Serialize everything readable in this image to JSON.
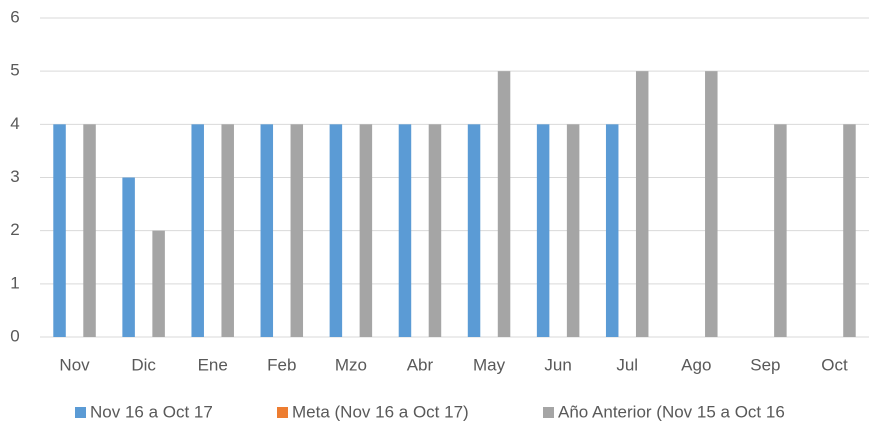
{
  "chart_data": {
    "type": "bar",
    "categories": [
      "Nov",
      "Dic",
      "Ene",
      "Feb",
      "Mzo",
      "Abr",
      "May",
      "Jun",
      "Jul",
      "Ago",
      "Sep",
      "Oct"
    ],
    "series": [
      {
        "name": "Nov 16 a Oct 17",
        "color": "#5b9bd5",
        "values": [
          4,
          3,
          4,
          4,
          4,
          4,
          4,
          4,
          4,
          null,
          null,
          null
        ]
      },
      {
        "name": "Meta (Nov 16 a Oct 17)",
        "color": "#ed7d31",
        "values": [
          null,
          null,
          null,
          null,
          null,
          null,
          null,
          null,
          null,
          null,
          null,
          null
        ]
      },
      {
        "name": "Año Anterior (Nov 15 a Oct 16",
        "color": "#a5a5a5",
        "values": [
          4,
          2,
          4,
          4,
          4,
          4,
          5,
          4,
          5,
          5,
          4,
          4
        ]
      }
    ],
    "ylim": [
      0,
      6
    ],
    "yticks": [
      0,
      1,
      2,
      3,
      4,
      5,
      6
    ],
    "grid": true,
    "legend": "bottom"
  }
}
